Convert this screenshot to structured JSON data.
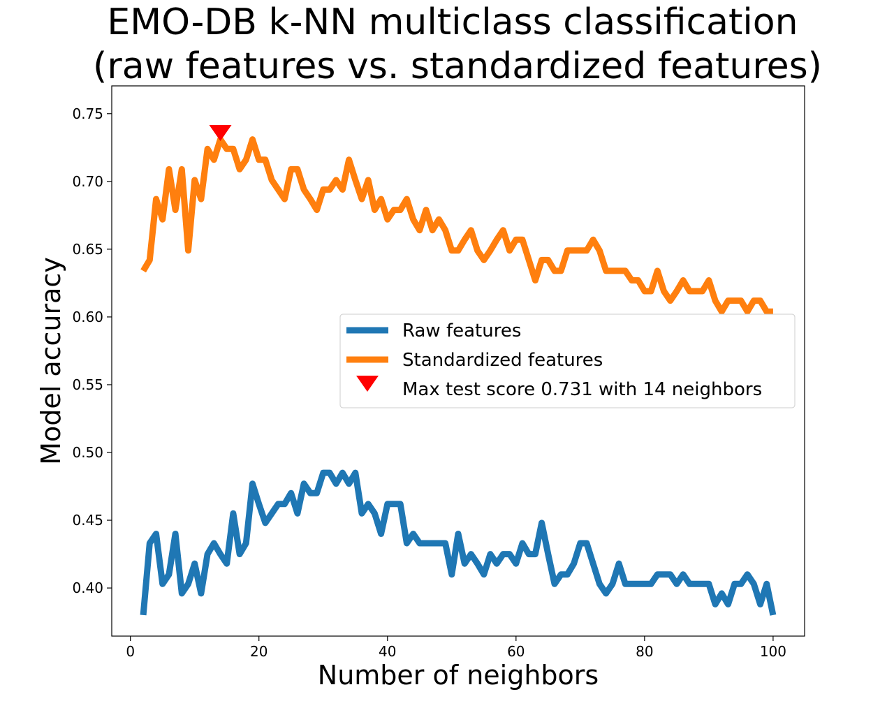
{
  "chart_data": {
    "type": "line",
    "title_line1": "EMO-DB k-NN multiclass classification",
    "title_line2": "(raw features vs. standardized features)",
    "xlabel": "Number of neighbors",
    "ylabel": "Model accuracy",
    "xlim": [
      -2.9,
      104.9
    ],
    "ylim": [
      0.3645,
      0.7705
    ],
    "xticks": [
      0,
      20,
      40,
      60,
      80,
      100
    ],
    "xtick_labels": [
      "0",
      "20",
      "40",
      "60",
      "80",
      "100"
    ],
    "yticks": [
      0.4,
      0.45,
      0.5,
      0.55,
      0.6,
      0.65,
      0.7,
      0.75
    ],
    "ytick_labels": [
      "0.40",
      "0.45",
      "0.50",
      "0.55",
      "0.60",
      "0.65",
      "0.70",
      "0.75"
    ],
    "grid": false,
    "legend_position": "center-right",
    "colors": {
      "raw": "#1f77b4",
      "standardized": "#ff7f0e",
      "marker": "#ff0000"
    },
    "series": [
      {
        "name": "Raw features",
        "x": [
          2,
          3,
          4,
          5,
          6,
          7,
          8,
          9,
          10,
          11,
          12,
          13,
          14,
          15,
          16,
          17,
          18,
          19,
          20,
          21,
          22,
          23,
          24,
          25,
          26,
          27,
          28,
          29,
          30,
          31,
          32,
          33,
          34,
          35,
          36,
          37,
          38,
          39,
          40,
          41,
          42,
          43,
          44,
          45,
          46,
          47,
          48,
          49,
          50,
          51,
          52,
          53,
          54,
          55,
          56,
          57,
          58,
          59,
          60,
          61,
          62,
          63,
          64,
          65,
          66,
          67,
          68,
          69,
          70,
          71,
          72,
          73,
          74,
          75,
          76,
          77,
          78,
          79,
          80,
          81,
          82,
          83,
          84,
          85,
          86,
          87,
          88,
          89,
          90,
          91,
          92,
          93,
          94,
          95,
          96,
          97,
          98,
          99,
          100
        ],
        "values": [
          0.38,
          0.433,
          0.44,
          0.403,
          0.41,
          0.44,
          0.396,
          0.403,
          0.418,
          0.396,
          0.425,
          0.433,
          0.425,
          0.418,
          0.455,
          0.425,
          0.433,
          0.477,
          0.462,
          0.448,
          0.455,
          0.462,
          0.462,
          0.47,
          0.455,
          0.477,
          0.47,
          0.47,
          0.485,
          0.485,
          0.477,
          0.485,
          0.477,
          0.485,
          0.455,
          0.462,
          0.455,
          0.44,
          0.462,
          0.462,
          0.462,
          0.433,
          0.44,
          0.433,
          0.433,
          0.433,
          0.433,
          0.433,
          0.41,
          0.44,
          0.418,
          0.425,
          0.418,
          0.41,
          0.425,
          0.418,
          0.425,
          0.425,
          0.418,
          0.433,
          0.425,
          0.425,
          0.448,
          0.425,
          0.403,
          0.41,
          0.41,
          0.418,
          0.433,
          0.433,
          0.418,
          0.403,
          0.396,
          0.403,
          0.418,
          0.403,
          0.403,
          0.403,
          0.403,
          0.403,
          0.41,
          0.41,
          0.41,
          0.403,
          0.41,
          0.403,
          0.403,
          0.403,
          0.403,
          0.388,
          0.396,
          0.388,
          0.403,
          0.403,
          0.41,
          0.403,
          0.388,
          0.403,
          0.38
        ]
      },
      {
        "name": "Standardized features",
        "x": [
          2,
          3,
          4,
          5,
          6,
          7,
          8,
          9,
          10,
          11,
          12,
          13,
          14,
          15,
          16,
          17,
          18,
          19,
          20,
          21,
          22,
          23,
          24,
          25,
          26,
          27,
          28,
          29,
          30,
          31,
          32,
          33,
          34,
          35,
          36,
          37,
          38,
          39,
          40,
          41,
          42,
          43,
          44,
          45,
          46,
          47,
          48,
          49,
          50,
          51,
          52,
          53,
          54,
          55,
          56,
          57,
          58,
          59,
          60,
          61,
          62,
          63,
          64,
          65,
          66,
          67,
          68,
          69,
          70,
          71,
          72,
          73,
          74,
          75,
          76,
          77,
          78,
          79,
          80,
          81,
          82,
          83,
          84,
          85,
          86,
          87,
          88,
          89,
          90,
          91,
          92,
          93,
          94,
          95,
          96,
          97,
          98,
          99,
          100
        ],
        "values": [
          0.634,
          0.642,
          0.687,
          0.672,
          0.709,
          0.679,
          0.709,
          0.649,
          0.701,
          0.687,
          0.724,
          0.716,
          0.731,
          0.724,
          0.724,
          0.709,
          0.716,
          0.731,
          0.716,
          0.716,
          0.701,
          0.694,
          0.687,
          0.709,
          0.709,
          0.694,
          0.687,
          0.679,
          0.694,
          0.694,
          0.701,
          0.694,
          0.716,
          0.701,
          0.687,
          0.701,
          0.679,
          0.687,
          0.672,
          0.679,
          0.679,
          0.687,
          0.672,
          0.664,
          0.679,
          0.664,
          0.672,
          0.664,
          0.649,
          0.649,
          0.657,
          0.664,
          0.649,
          0.642,
          0.649,
          0.657,
          0.664,
          0.649,
          0.657,
          0.657,
          0.642,
          0.627,
          0.642,
          0.642,
          0.634,
          0.634,
          0.649,
          0.649,
          0.649,
          0.649,
          0.657,
          0.649,
          0.634,
          0.634,
          0.634,
          0.634,
          0.627,
          0.627,
          0.619,
          0.619,
          0.634,
          0.619,
          0.612,
          0.619,
          0.627,
          0.619,
          0.619,
          0.619,
          0.627,
          0.612,
          0.604,
          0.612,
          0.612,
          0.612,
          0.604,
          0.612,
          0.612,
          0.604,
          0.604
        ]
      }
    ],
    "max_marker": {
      "label": "Max test score 0.731 with 14 neighbors",
      "x": 14,
      "y": 0.736
    }
  }
}
